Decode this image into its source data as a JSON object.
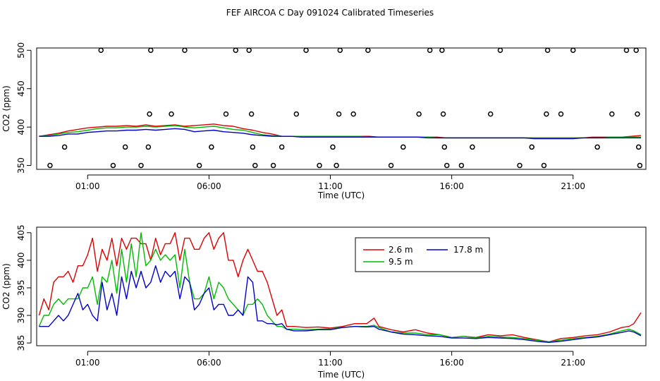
{
  "page_title": "FEF AIRCOA C  Day 091024  Calibrated Timeseries",
  "colors": {
    "line_2_6": "#dd0000",
    "line_9_5": "#00bb00",
    "line_17_8": "#0000cc",
    "axis": "#000000"
  },
  "chart_data": [
    {
      "type": "scatter",
      "title": "",
      "xlabel": "Time (UTC)",
      "ylabel": "CO2 (ppm)",
      "xlim": [
        -1.1,
        24.0
      ],
      "ylim": [
        345,
        503
      ],
      "x_ticks": [
        1,
        6,
        11,
        16,
        21
      ],
      "x_tick_labels": [
        "01:00",
        "06:00",
        "11:00",
        "16:00",
        "21:00"
      ],
      "y_ticks": [
        350,
        400,
        450,
        500
      ],
      "y_tick_labels": [
        "350",
        "400",
        "450",
        "500"
      ],
      "markers": {
        "shape": "open-circle",
        "x": [
          -0.55,
          0.05,
          1.55,
          2.05,
          2.55,
          3.2,
          3.5,
          3.55,
          3.6,
          4.45,
          5.0,
          5.6,
          6.1,
          6.7,
          7.1,
          7.65,
          7.75,
          7.8,
          7.9,
          8.65,
          9.0,
          9.6,
          10.0,
          10.55,
          11.1,
          11.25,
          11.35,
          11.4,
          11.95,
          12.55,
          13.5,
          14.0,
          14.65,
          15.1,
          15.6,
          15.65,
          15.7,
          15.8,
          16.4,
          16.85,
          17.6,
          18.0,
          18.8,
          19.3,
          19.8,
          19.9,
          19.95,
          20.5,
          21.0,
          22.0,
          22.6,
          23.2,
          23.6,
          23.65,
          23.7,
          23.75
        ],
        "y": [
          350,
          374,
          500,
          350,
          374,
          350,
          374,
          417,
          500,
          417,
          500,
          350,
          374,
          417,
          500,
          500,
          417,
          374,
          350,
          350,
          374,
          417,
          500,
          350,
          374,
          350,
          417,
          500,
          417,
          500,
          350,
          374,
          417,
          500,
          500,
          417,
          374,
          350,
          350,
          374,
          417,
          500,
          350,
          374,
          350,
          417,
          500,
          417,
          500,
          374,
          417,
          500,
          500,
          417,
          374,
          350
        ]
      },
      "x": [
        -1.0,
        -0.6,
        -0.2,
        0.2,
        0.6,
        1.0,
        1.4,
        1.8,
        2.2,
        2.6,
        3.0,
        3.4,
        3.8,
        4.2,
        4.6,
        5.0,
        5.4,
        5.8,
        6.2,
        6.6,
        7.0,
        7.4,
        7.8,
        8.2,
        8.6,
        9.0,
        9.4,
        9.8,
        10.2,
        10.6,
        11.0,
        11.4,
        11.8,
        12.2,
        12.6,
        13.0,
        13.4,
        13.8,
        14.2,
        14.6,
        15.0,
        15.4,
        15.8,
        16.2,
        16.6,
        17.0,
        17.4,
        17.8,
        18.2,
        18.6,
        19.0,
        19.4,
        19.8,
        20.2,
        20.6,
        21.0,
        21.4,
        21.8,
        22.2,
        22.6,
        23.0,
        23.4,
        23.8
      ],
      "series": [
        {
          "name": "2.6 m",
          "color": "#dd0000",
          "values": [
            388,
            390,
            392,
            395,
            397,
            399,
            400,
            401,
            401,
            402,
            401,
            403,
            401,
            402,
            403,
            401,
            402,
            403,
            404,
            402,
            401,
            398,
            396,
            393,
            391,
            388,
            388,
            388,
            388,
            388,
            388,
            388,
            388,
            388,
            388,
            387,
            387,
            387,
            387,
            387,
            387,
            387,
            386,
            386,
            386,
            386,
            386,
            386,
            386,
            386,
            386,
            386,
            386,
            386,
            386,
            386,
            386,
            387,
            387,
            387,
            387,
            388,
            389
          ]
        },
        {
          "name": "9.5 m",
          "color": "#00bb00",
          "values": [
            388,
            389,
            391,
            393,
            394,
            396,
            398,
            399,
            399,
            400,
            400,
            401,
            400,
            401,
            402,
            400,
            399,
            400,
            401,
            399,
            397,
            396,
            393,
            390,
            389,
            388,
            388,
            388,
            388,
            388,
            388,
            388,
            388,
            388,
            387,
            387,
            387,
            387,
            387,
            387,
            387,
            386,
            386,
            386,
            386,
            386,
            386,
            386,
            386,
            386,
            386,
            386,
            386,
            386,
            386,
            386,
            386,
            386,
            386,
            387,
            387,
            387,
            387
          ]
        },
        {
          "name": "17.8 m",
          "color": "#0000cc",
          "values": [
            388,
            388,
            389,
            391,
            391,
            393,
            394,
            395,
            395,
            396,
            396,
            397,
            396,
            397,
            398,
            397,
            394,
            395,
            396,
            394,
            393,
            392,
            390,
            389,
            388,
            388,
            388,
            387,
            387,
            387,
            387,
            387,
            387,
            387,
            387,
            387,
            387,
            387,
            387,
            387,
            386,
            386,
            386,
            386,
            386,
            386,
            386,
            386,
            386,
            386,
            386,
            385,
            385,
            385,
            385,
            385,
            386,
            386,
            386,
            386,
            386,
            386,
            386
          ]
        }
      ]
    },
    {
      "type": "line",
      "title": "",
      "xlabel": "Time (UTC)",
      "ylabel": "CO2 (ppm)",
      "xlim": [
        -1.1,
        24.0
      ],
      "ylim": [
        384.5,
        406
      ],
      "x_ticks": [
        1,
        6,
        11,
        16,
        21
      ],
      "x_tick_labels": [
        "01:00",
        "06:00",
        "11:00",
        "16:00",
        "21:00"
      ],
      "y_ticks": [
        385,
        390,
        395,
        400,
        405
      ],
      "y_tick_labels": [
        "385",
        "390",
        "395",
        "400",
        "405"
      ],
      "legend": {
        "position": "top-center",
        "entries": [
          "2.6 m",
          "17.8 m",
          "9.5 m"
        ]
      },
      "x": [
        -1.0,
        -0.8,
        -0.6,
        -0.4,
        -0.2,
        0.0,
        0.2,
        0.4,
        0.6,
        0.8,
        1.0,
        1.2,
        1.4,
        1.6,
        1.8,
        2.0,
        2.2,
        2.4,
        2.6,
        2.8,
        3.0,
        3.2,
        3.4,
        3.6,
        3.8,
        4.0,
        4.2,
        4.4,
        4.6,
        4.8,
        5.0,
        5.2,
        5.4,
        5.6,
        5.8,
        6.0,
        6.2,
        6.4,
        6.6,
        6.8,
        7.0,
        7.2,
        7.4,
        7.6,
        7.8,
        8.0,
        8.2,
        8.4,
        8.6,
        8.8,
        9.0,
        9.2,
        9.5,
        10.0,
        10.5,
        11.0,
        11.5,
        12.0,
        12.5,
        12.8,
        13.0,
        13.5,
        14.0,
        14.5,
        15.0,
        15.5,
        16.0,
        16.5,
        17.0,
        17.5,
        18.0,
        18.5,
        19.0,
        19.5,
        20.0,
        20.5,
        21.0,
        21.5,
        22.0,
        22.5,
        23.0,
        23.3,
        23.5,
        23.8
      ],
      "series": [
        {
          "name": "2.6 m",
          "color": "#dd0000",
          "values": [
            390,
            393,
            391,
            396,
            397,
            397,
            398,
            396,
            399,
            399,
            401,
            404,
            398,
            402,
            400,
            404,
            399,
            404,
            402,
            404,
            404,
            403,
            403,
            400,
            404,
            401,
            403,
            403,
            405,
            400,
            404,
            404,
            402,
            402,
            404,
            405,
            402,
            404,
            405,
            400,
            400,
            397,
            400,
            402,
            400,
            398,
            398,
            396,
            393,
            390,
            391,
            388,
            388,
            387.8,
            387.9,
            387.7,
            388,
            388.5,
            388.5,
            389.5,
            388,
            387.4,
            387,
            387.4,
            386.8,
            386.5,
            386,
            386.2,
            386,
            386.5,
            386.3,
            386.5,
            386,
            385.6,
            385.2,
            385.8,
            386,
            386.3,
            386.5,
            387,
            387.8,
            388,
            388.5,
            390.5
          ]
        },
        {
          "name": "9.5 m",
          "color": "#00bb00",
          "values": [
            388,
            390,
            390,
            392,
            393,
            392,
            393,
            393,
            393,
            395,
            395,
            397,
            392,
            397,
            396,
            400,
            394,
            402,
            396,
            403,
            397,
            405,
            399,
            400,
            402,
            400,
            401,
            400,
            401,
            395,
            402,
            396,
            393,
            393,
            394,
            397,
            393,
            396,
            395,
            393,
            392,
            391,
            390,
            392,
            392,
            393,
            392,
            390,
            389,
            388,
            388,
            387.5,
            387.5,
            387.4,
            387.5,
            387.6,
            387.8,
            388,
            388,
            388.2,
            387.8,
            387,
            386.8,
            386.8,
            386.5,
            386.5,
            386,
            386.2,
            385.9,
            386.2,
            386.1,
            386,
            385.8,
            385.5,
            385.2,
            385.5,
            385.8,
            386,
            386.2,
            386.6,
            387.2,
            387.5,
            387.2,
            386.5
          ]
        },
        {
          "name": "17.8 m",
          "color": "#0000cc",
          "values": [
            388,
            388,
            388,
            389,
            390,
            389,
            390,
            392,
            394,
            391,
            392,
            390,
            389,
            396,
            391,
            394,
            390,
            397,
            393,
            398,
            395,
            398,
            395,
            396,
            399,
            396,
            398,
            397,
            398,
            393,
            397,
            396,
            391,
            392,
            394,
            395,
            391,
            392,
            392,
            390,
            390,
            391,
            390,
            397,
            396,
            389,
            389,
            388.5,
            388.5,
            388.3,
            388.5,
            387.5,
            387.2,
            387.2,
            387.4,
            387.4,
            387.8,
            388,
            387.9,
            388,
            387.5,
            387,
            386.6,
            386.5,
            386.3,
            386.2,
            385.9,
            385.9,
            385.8,
            386,
            385.9,
            385.8,
            385.6,
            385.3,
            385.1,
            385.3,
            385.6,
            385.9,
            386.1,
            386.5,
            386.9,
            387.2,
            387,
            386.3
          ]
        }
      ]
    }
  ]
}
